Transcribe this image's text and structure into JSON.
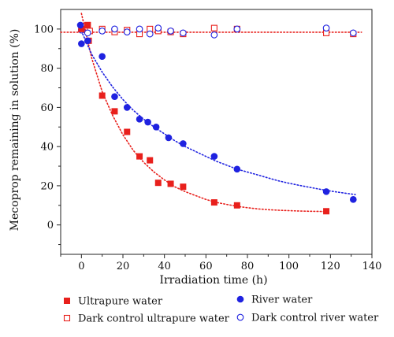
{
  "chart_data": {
    "type": "scatter",
    "xlabel": "Irradiation time (h)",
    "ylabel": "Mecoprop remaining in solution (%)",
    "xlim": [
      -10,
      140
    ],
    "ylim": [
      -15,
      110
    ],
    "xticks": [
      0,
      20,
      40,
      60,
      80,
      100,
      120,
      140
    ],
    "yticks": [
      0,
      20,
      40,
      60,
      80,
      100
    ],
    "grid": false,
    "legend_position": "bottom",
    "series": [
      {
        "name": "Ultrapure water",
        "marker": "filled-square",
        "color": "#e8201c",
        "x": [
          0,
          3,
          3.5,
          10,
          16,
          22,
          28,
          33,
          37,
          43,
          49,
          64,
          75,
          118
        ],
        "y": [
          100,
          102,
          94,
          66,
          58,
          47.5,
          35,
          33,
          21.5,
          21,
          19.5,
          11.5,
          10,
          7
        ],
        "fit": {
          "color": "#e8201c",
          "x": [
            0,
            5,
            10,
            15,
            20,
            25,
            30,
            35,
            40,
            45,
            50,
            55,
            60,
            65,
            70,
            75,
            80,
            85,
            90,
            95,
            100,
            105,
            110,
            115,
            119
          ],
          "y": [
            108,
            85,
            68,
            56,
            46,
            38,
            32,
            27,
            23,
            19.5,
            17,
            15,
            13,
            11.5,
            10.5,
            9.5,
            8.8,
            8.2,
            7.8,
            7.5,
            7.3,
            7.1,
            7.0,
            6.9,
            6.8
          ]
        }
      },
      {
        "name": "Dark control ultrapure water",
        "marker": "open-square",
        "color": "#e8201c",
        "x": [
          0,
          3,
          4,
          10,
          16,
          22,
          28,
          33,
          37,
          43,
          49,
          64,
          75,
          118,
          131
        ],
        "y": [
          100,
          102,
          99,
          100,
          98.5,
          99.5,
          97.5,
          100,
          99,
          98.5,
          97.5,
          100.5,
          100,
          98,
          97.5
        ],
        "fit": {
          "color": "#e8201c",
          "x": [
            -10,
            135
          ],
          "y": [
            98.4,
            98.4
          ]
        }
      },
      {
        "name": "River water",
        "marker": "filled-circle",
        "color": "#1f22e0",
        "x": [
          -0.5,
          0,
          3,
          10,
          16,
          22,
          28,
          32,
          36,
          42,
          49,
          64,
          75,
          118,
          131
        ],
        "y": [
          102,
          92.5,
          94,
          86,
          65.5,
          60,
          54,
          52.5,
          50,
          44.5,
          41.5,
          35,
          28.5,
          17,
          13
        ],
        "fit": {
          "color": "#1f22e0",
          "x": [
            0,
            5,
            10,
            15,
            20,
            25,
            30,
            35,
            40,
            45,
            50,
            55,
            60,
            65,
            70,
            75,
            80,
            85,
            90,
            95,
            100,
            105,
            110,
            115,
            120,
            125,
            132
          ],
          "y": [
            99,
            87,
            78,
            70.5,
            64,
            58.5,
            54,
            50,
            46.5,
            43,
            40,
            37.5,
            35,
            32.5,
            30.5,
            28.5,
            27,
            25.5,
            24,
            22.5,
            21.3,
            20.2,
            19.2,
            18.2,
            17.3,
            16.5,
            15.5
          ]
        }
      },
      {
        "name": "Dark control river water",
        "marker": "open-circle",
        "color": "#1f22e0",
        "x": [
          0,
          3,
          10,
          16,
          22,
          28,
          33,
          37,
          43,
          49,
          64,
          75,
          118,
          131
        ],
        "y": [
          99.5,
          98,
          99,
          100,
          98.5,
          100,
          97.5,
          100.5,
          99,
          98,
          97,
          100,
          100.5,
          98
        ],
        "fit": null
      }
    ]
  }
}
